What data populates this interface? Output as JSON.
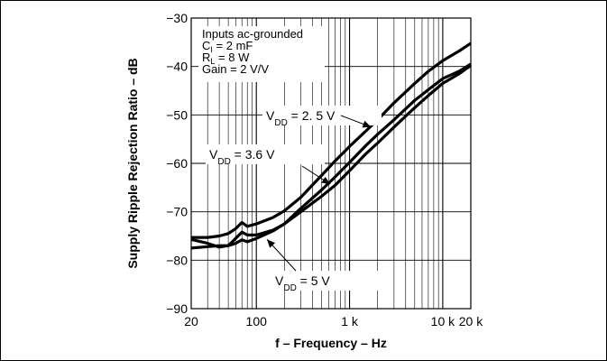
{
  "chart_data": {
    "type": "line",
    "title": "",
    "xlabel": "f – Frequency – Hz",
    "ylabel": "Supply Ripple Rejection Ratio – dB",
    "x_scale": "log",
    "xlim": [
      20,
      20000
    ],
    "ylim": [
      -90,
      -30
    ],
    "grid": true,
    "x_ticks": [
      {
        "value": 20,
        "label": "20"
      },
      {
        "value": 100,
        "label": "100"
      },
      {
        "value": 1000,
        "label": "1 k"
      },
      {
        "value": 10000,
        "label": "10 k"
      },
      {
        "value": 20000,
        "label": "20 k"
      }
    ],
    "y_ticks": [
      {
        "value": -30,
        "label": "−30"
      },
      {
        "value": -40,
        "label": "−40"
      },
      {
        "value": -50,
        "label": "−50"
      },
      {
        "value": -60,
        "label": "−60"
      },
      {
        "value": -70,
        "label": "−70"
      },
      {
        "value": -80,
        "label": "−80"
      },
      {
        "value": -90,
        "label": "−90"
      }
    ],
    "conditions": [
      {
        "text": "Inputs ac-grounded",
        "sub": "",
        "rest": ""
      },
      {
        "text": "C",
        "sub": "I",
        "rest": " = 2 mF"
      },
      {
        "text": "R",
        "sub": "L",
        "rest": " = 8 W"
      },
      {
        "text": "Gain = 2 V/V",
        "sub": "",
        "rest": ""
      }
    ],
    "series": [
      {
        "name_main": "V",
        "name_sub": "DD",
        "name_rest": " = 2. 5 V",
        "x": [
          20,
          30,
          40,
          50,
          60,
          70,
          80,
          100,
          150,
          200,
          300,
          500,
          700,
          1000,
          1500,
          2000,
          3000,
          5000,
          7000,
          10000,
          15000,
          20000
        ],
        "y": [
          -75.3,
          -75.3,
          -75.0,
          -74.5,
          -73.5,
          -72.2,
          -73.0,
          -72.5,
          -71.2,
          -69.8,
          -67.0,
          -62.5,
          -59.5,
          -56.5,
          -53.3,
          -51.0,
          -47.5,
          -43.5,
          -41.0,
          -38.8,
          -36.8,
          -35.2
        ]
      },
      {
        "name_main": "V",
        "name_sub": "DD",
        "name_rest": " = 3.6 V",
        "x": [
          20,
          30,
          40,
          50,
          60,
          70,
          80,
          100,
          150,
          200,
          300,
          500,
          700,
          1000,
          1500,
          2000,
          3000,
          5000,
          7000,
          10000,
          15000,
          20000
        ],
        "y": [
          -75.7,
          -76.5,
          -77.3,
          -77.0,
          -75.5,
          -74.2,
          -74.8,
          -74.8,
          -73.8,
          -72.5,
          -69.3,
          -65.5,
          -62.8,
          -59.8,
          -56.3,
          -54.0,
          -51.0,
          -47.0,
          -44.8,
          -42.5,
          -41.0,
          -39.5
        ]
      },
      {
        "name_main": "V",
        "name_sub": "DD",
        "name_rest": " = 5 V",
        "x": [
          20,
          30,
          40,
          50,
          60,
          70,
          80,
          100,
          150,
          200,
          300,
          500,
          700,
          1000,
          1500,
          2000,
          3000,
          5000,
          7000,
          10000,
          15000,
          20000
        ],
        "y": [
          -77.5,
          -77.2,
          -77.0,
          -77.0,
          -76.5,
          -75.8,
          -76.2,
          -75.5,
          -74.0,
          -72.5,
          -70.0,
          -66.8,
          -64.5,
          -61.5,
          -58.0,
          -55.8,
          -52.5,
          -48.5,
          -46.0,
          -43.5,
          -41.5,
          -39.8
        ]
      }
    ],
    "annotations": [
      {
        "series": 0,
        "at": [
          1700,
          -52.5
        ]
      },
      {
        "series": 1,
        "at": [
          620,
          -64.3
        ]
      },
      {
        "series": 2,
        "at": [
          130,
          -75.7
        ]
      }
    ]
  }
}
